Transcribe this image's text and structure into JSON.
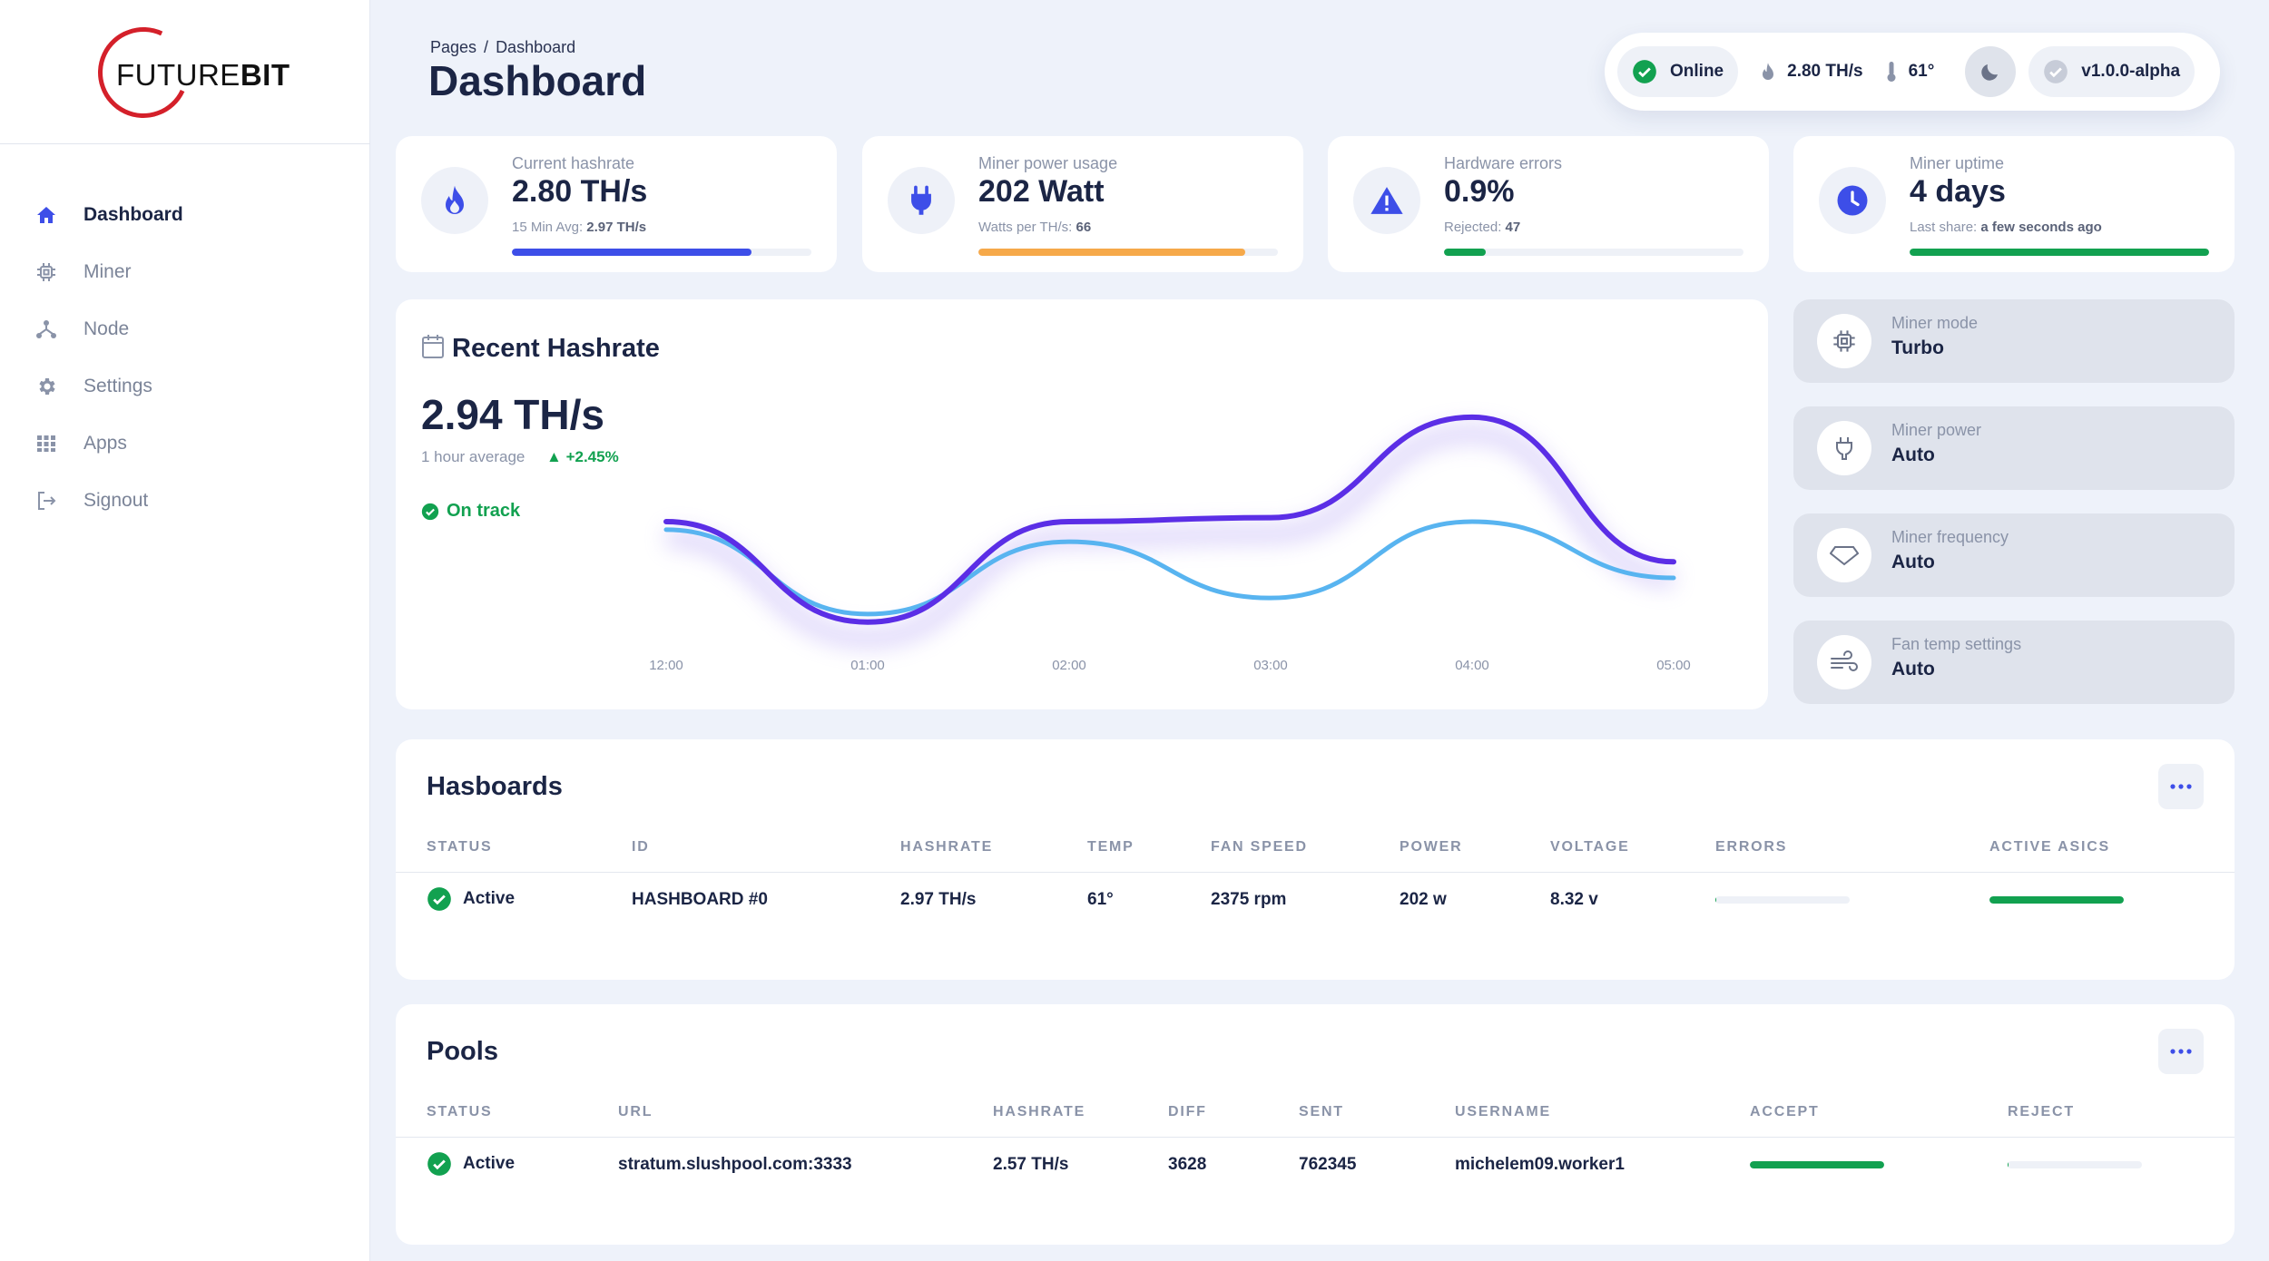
{
  "brand": {
    "logo_thin": "FUTURE",
    "logo_bold": "BIT",
    "logo_color": "#d4202a"
  },
  "sidebar": {
    "items": [
      {
        "label": "Dashboard",
        "icon": "home-icon",
        "active": true
      },
      {
        "label": "Miner",
        "icon": "chip-icon"
      },
      {
        "label": "Node",
        "icon": "node-icon"
      },
      {
        "label": "Settings",
        "icon": "gear-icon"
      },
      {
        "label": "Apps",
        "icon": "grid-icon"
      },
      {
        "label": "Signout",
        "icon": "signout-icon"
      }
    ]
  },
  "header": {
    "breadcrumb_parent": "Pages",
    "breadcrumb_sep": "/",
    "breadcrumb_current": "Dashboard",
    "title": "Dashboard"
  },
  "status_bar": {
    "online": "Online",
    "hashrate": "2.80 TH/s",
    "temp": "61°",
    "version": "v1.0.0-alpha"
  },
  "stats": [
    {
      "label": "Current hashrate",
      "value": "2.80 TH/s",
      "sub_label": "15 Min Avg:",
      "sub_value": "2.97 TH/s",
      "progress": 0.8,
      "color": "#3d4ee8",
      "icon": "flame-icon"
    },
    {
      "label": "Miner power usage",
      "value": "202 Watt",
      "sub_label": "Watts per TH/s:",
      "sub_value": "66",
      "progress": 0.89,
      "color": "#f6a94a",
      "icon": "plug-icon"
    },
    {
      "label": "Hardware errors",
      "value": "0.9%",
      "sub_label": "Rejected:",
      "sub_value": "47",
      "progress": 0.14,
      "color": "#12a150",
      "icon": "warning-icon"
    },
    {
      "label": "Miner uptime",
      "value": "4 days",
      "sub_label": "Last share:",
      "sub_value": "a few seconds ago",
      "progress": 1.0,
      "color": "#12a150",
      "icon": "clock-icon"
    }
  ],
  "hashrate_card": {
    "title": "Recent Hashrate",
    "value": "2.94 TH/s",
    "subtitle": "1 hour average",
    "delta": "+2.45%",
    "status": "On track"
  },
  "chart_data": {
    "type": "line",
    "x": [
      "12:00",
      "01:00",
      "02:00",
      "03:00",
      "04:00",
      "05:00"
    ],
    "series": [
      {
        "color": "#5b2ee6",
        "values": [
          2.9,
          2.65,
          2.9,
          2.91,
          3.16,
          2.8
        ]
      },
      {
        "color": "#58b4f0",
        "values": [
          2.88,
          2.67,
          2.85,
          2.71,
          2.9,
          2.76
        ]
      }
    ],
    "ylim": [
      2.55,
      3.25
    ],
    "grid": false
  },
  "modes": [
    {
      "label": "Miner mode",
      "value": "Turbo",
      "icon": "chip-icon"
    },
    {
      "label": "Miner power",
      "value": "Auto",
      "icon": "plug-icon"
    },
    {
      "label": "Miner frequency",
      "value": "Auto",
      "icon": "diamond-icon"
    },
    {
      "label": "Fan temp settings",
      "value": "Auto",
      "icon": "wind-icon"
    }
  ],
  "hashboards": {
    "title": "Hasboards",
    "headers": [
      "STATUS",
      "ID",
      "HASHRATE",
      "TEMP",
      "FAN SPEED",
      "POWER",
      "VOLTAGE",
      "ERRORS",
      "ACTIVE ASICS"
    ],
    "row": {
      "status": "Active",
      "id": "HASHBOARD #0",
      "hashrate": "2.97 TH/s",
      "temp": "61°",
      "fan": "2375 rpm",
      "power": "202 w",
      "voltage": "8.32 v",
      "errors": 0.01,
      "asics": 1.0
    }
  },
  "pools": {
    "title": "Pools",
    "headers": [
      "STATUS",
      "URL",
      "HASHRATE",
      "DIFF",
      "SENT",
      "USERNAME",
      "ACCEPT",
      "REJECT"
    ],
    "row": {
      "status": "Active",
      "url": "stratum.slushpool.com:3333",
      "hashrate": "2.57 TH/s",
      "diff": "3628",
      "sent": "762345",
      "username": "michelem09.worker1",
      "accept": 1.0,
      "reject": 0.01
    }
  },
  "colors": {
    "accent": "#3d4ee8",
    "success": "#12a150",
    "warning": "#f6a94a",
    "purple": "#5b2ee6",
    "sky": "#58b4f0"
  }
}
